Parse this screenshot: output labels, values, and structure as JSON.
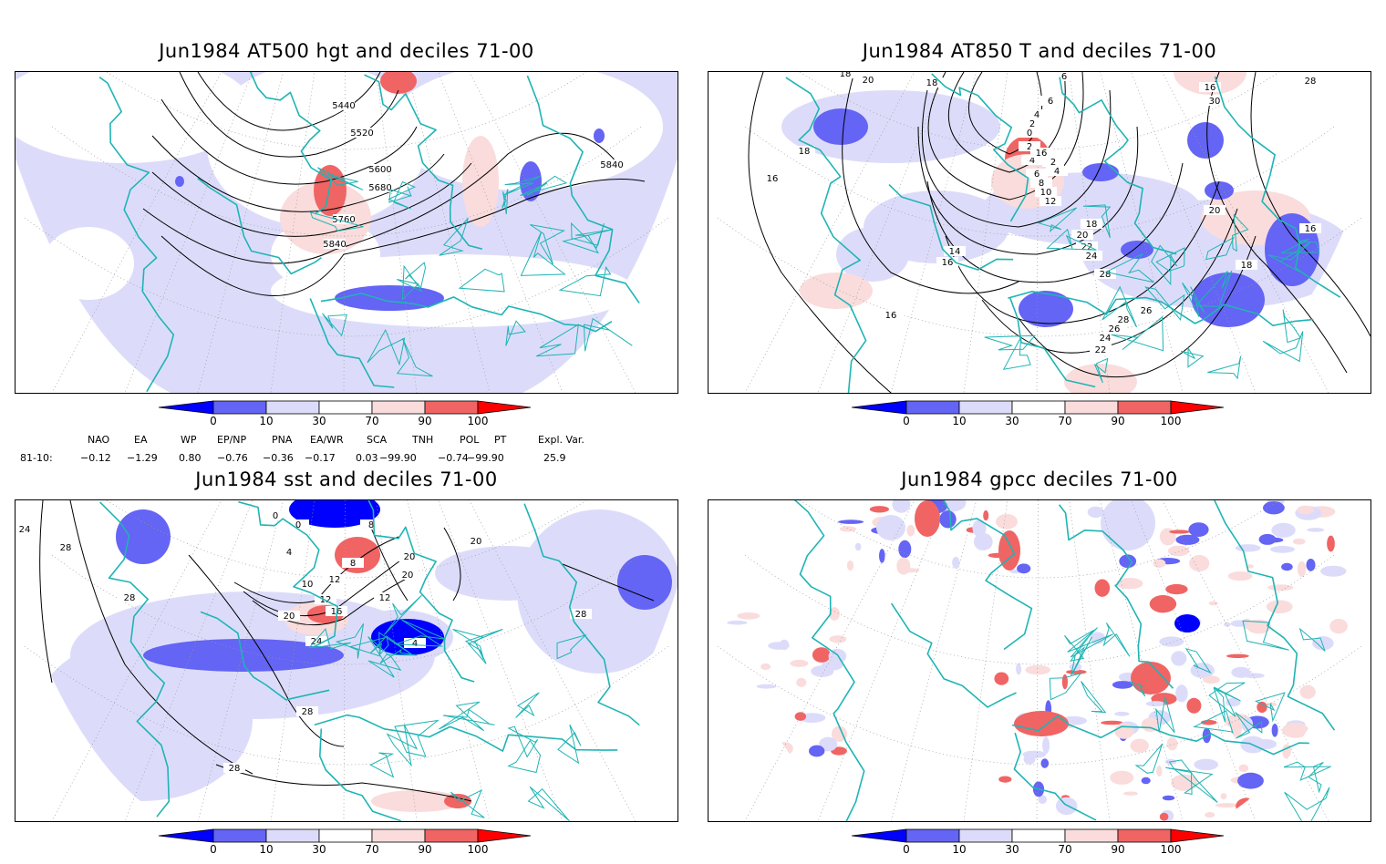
{
  "panels": [
    {
      "title": "Jun1984 AT500 hgt and deciles 71-00",
      "contour_labels": [
        "5440",
        "5520",
        "5600",
        "5680",
        "5760",
        "5840",
        "5840"
      ]
    },
    {
      "title": "Jun1984 AT850 T and deciles 71-00",
      "contour_labels": [
        "18",
        "20",
        "16",
        "18",
        "16",
        "6",
        "4",
        "2",
        "0",
        "2",
        "4",
        "6",
        "8",
        "10",
        "12",
        "14",
        "16",
        "18",
        "20",
        "22",
        "24",
        "26",
        "28",
        "28",
        "26",
        "24",
        "22",
        "20",
        "18",
        "16",
        "16",
        "30",
        "28",
        "18",
        "16",
        "2",
        "4",
        "6"
      ]
    },
    {
      "title": "Jun1984 sst and deciles 71-00",
      "contour_labels": [
        "24",
        "28",
        "28",
        "0",
        "0",
        "4",
        "8",
        "10",
        "12",
        "16",
        "20",
        "24",
        "28",
        "28",
        "20",
        "20",
        "12",
        "12",
        "8",
        "4",
        "20",
        "28"
      ]
    },
    {
      "title": "Jun1984 gpcc deciles 71-00",
      "contour_labels": []
    }
  ],
  "colorbar": {
    "labels": [
      "0",
      "10",
      "30",
      "70",
      "90",
      "100"
    ],
    "colors": {
      "below_0": "#0000ff",
      "0_10": "#6464f5",
      "10_30": "#dcdcfa",
      "30_70": "#ffffff",
      "70_90": "#fadcdc",
      "90_100": "#f06464",
      "above_100": "#ff0000"
    }
  },
  "teleconnections": {
    "headers": [
      "NAO",
      "EA",
      "WP",
      "EP/NP",
      "PNA",
      "EA/WR",
      "SCA",
      "TNH",
      "POL",
      "PT",
      "Expl. Var."
    ],
    "row_label": "81-10:",
    "values": [
      "−0.12",
      "−1.29",
      "0.80",
      "−0.76",
      "−0.36",
      "−0.17",
      "0.03",
      "−99.90",
      "−0.74",
      "−99.90",
      "25.9"
    ]
  },
  "colors": {
    "coast": "#20b4b4",
    "contour": "#000000",
    "grid": "#999999"
  }
}
